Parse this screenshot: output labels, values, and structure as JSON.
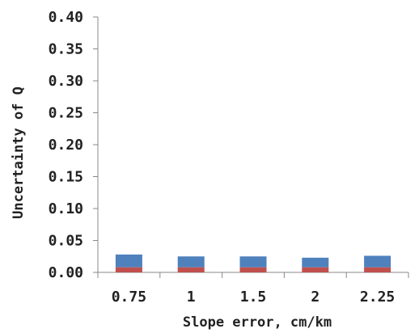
{
  "chart_data": {
    "type": "bar",
    "stacked": true,
    "categories": [
      "0.75",
      "1",
      "1.5",
      "2",
      "2.25"
    ],
    "series": [
      {
        "values": [
          0.008,
          0.008,
          0.008,
          0.008,
          0.008
        ],
        "color": "#c0504d"
      },
      {
        "values": [
          0.02,
          0.017,
          0.017,
          0.015,
          0.018
        ],
        "color": "#4f81bd"
      }
    ],
    "yticks": [
      "0.00",
      "0.05",
      "0.10",
      "0.15",
      "0.20",
      "0.25",
      "0.30",
      "0.35",
      "0.40"
    ],
    "ylim": [
      0,
      0.4
    ],
    "xlabel": "Slope error, cm/km",
    "ylabel": "Uncertainty of Q",
    "grid": false,
    "legend": "none"
  }
}
